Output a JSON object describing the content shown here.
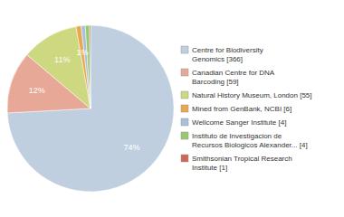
{
  "chart_data": {
    "type": "pie",
    "categories": [
      "Centre for Biodiversity\nGenomics [366]",
      "Canadian Centre for DNA\nBarcoding [59]",
      "Natural History Museum, London [55]",
      "Mined from GenBank, NCBI [6]",
      "Wellcome Sanger Institute [4]",
      "Instituto de Investigacion de\nRecursos Biologicos Alexander... [4]",
      "Smithsonian Tropical Research\nInstitute [1]"
    ],
    "values": [
      74,
      12,
      11,
      1,
      0.8,
      0.8,
      0.2
    ],
    "value_labels": [
      "74%",
      "12%",
      "11%",
      "1%",
      null,
      null,
      null
    ],
    "colors": [
      "#bfcfdf",
      "#e8a898",
      "#cdd880",
      "#e8a850",
      "#a8c0d8",
      "#98c870",
      "#cc6858"
    ],
    "data_labels": true,
    "legend": "right"
  }
}
